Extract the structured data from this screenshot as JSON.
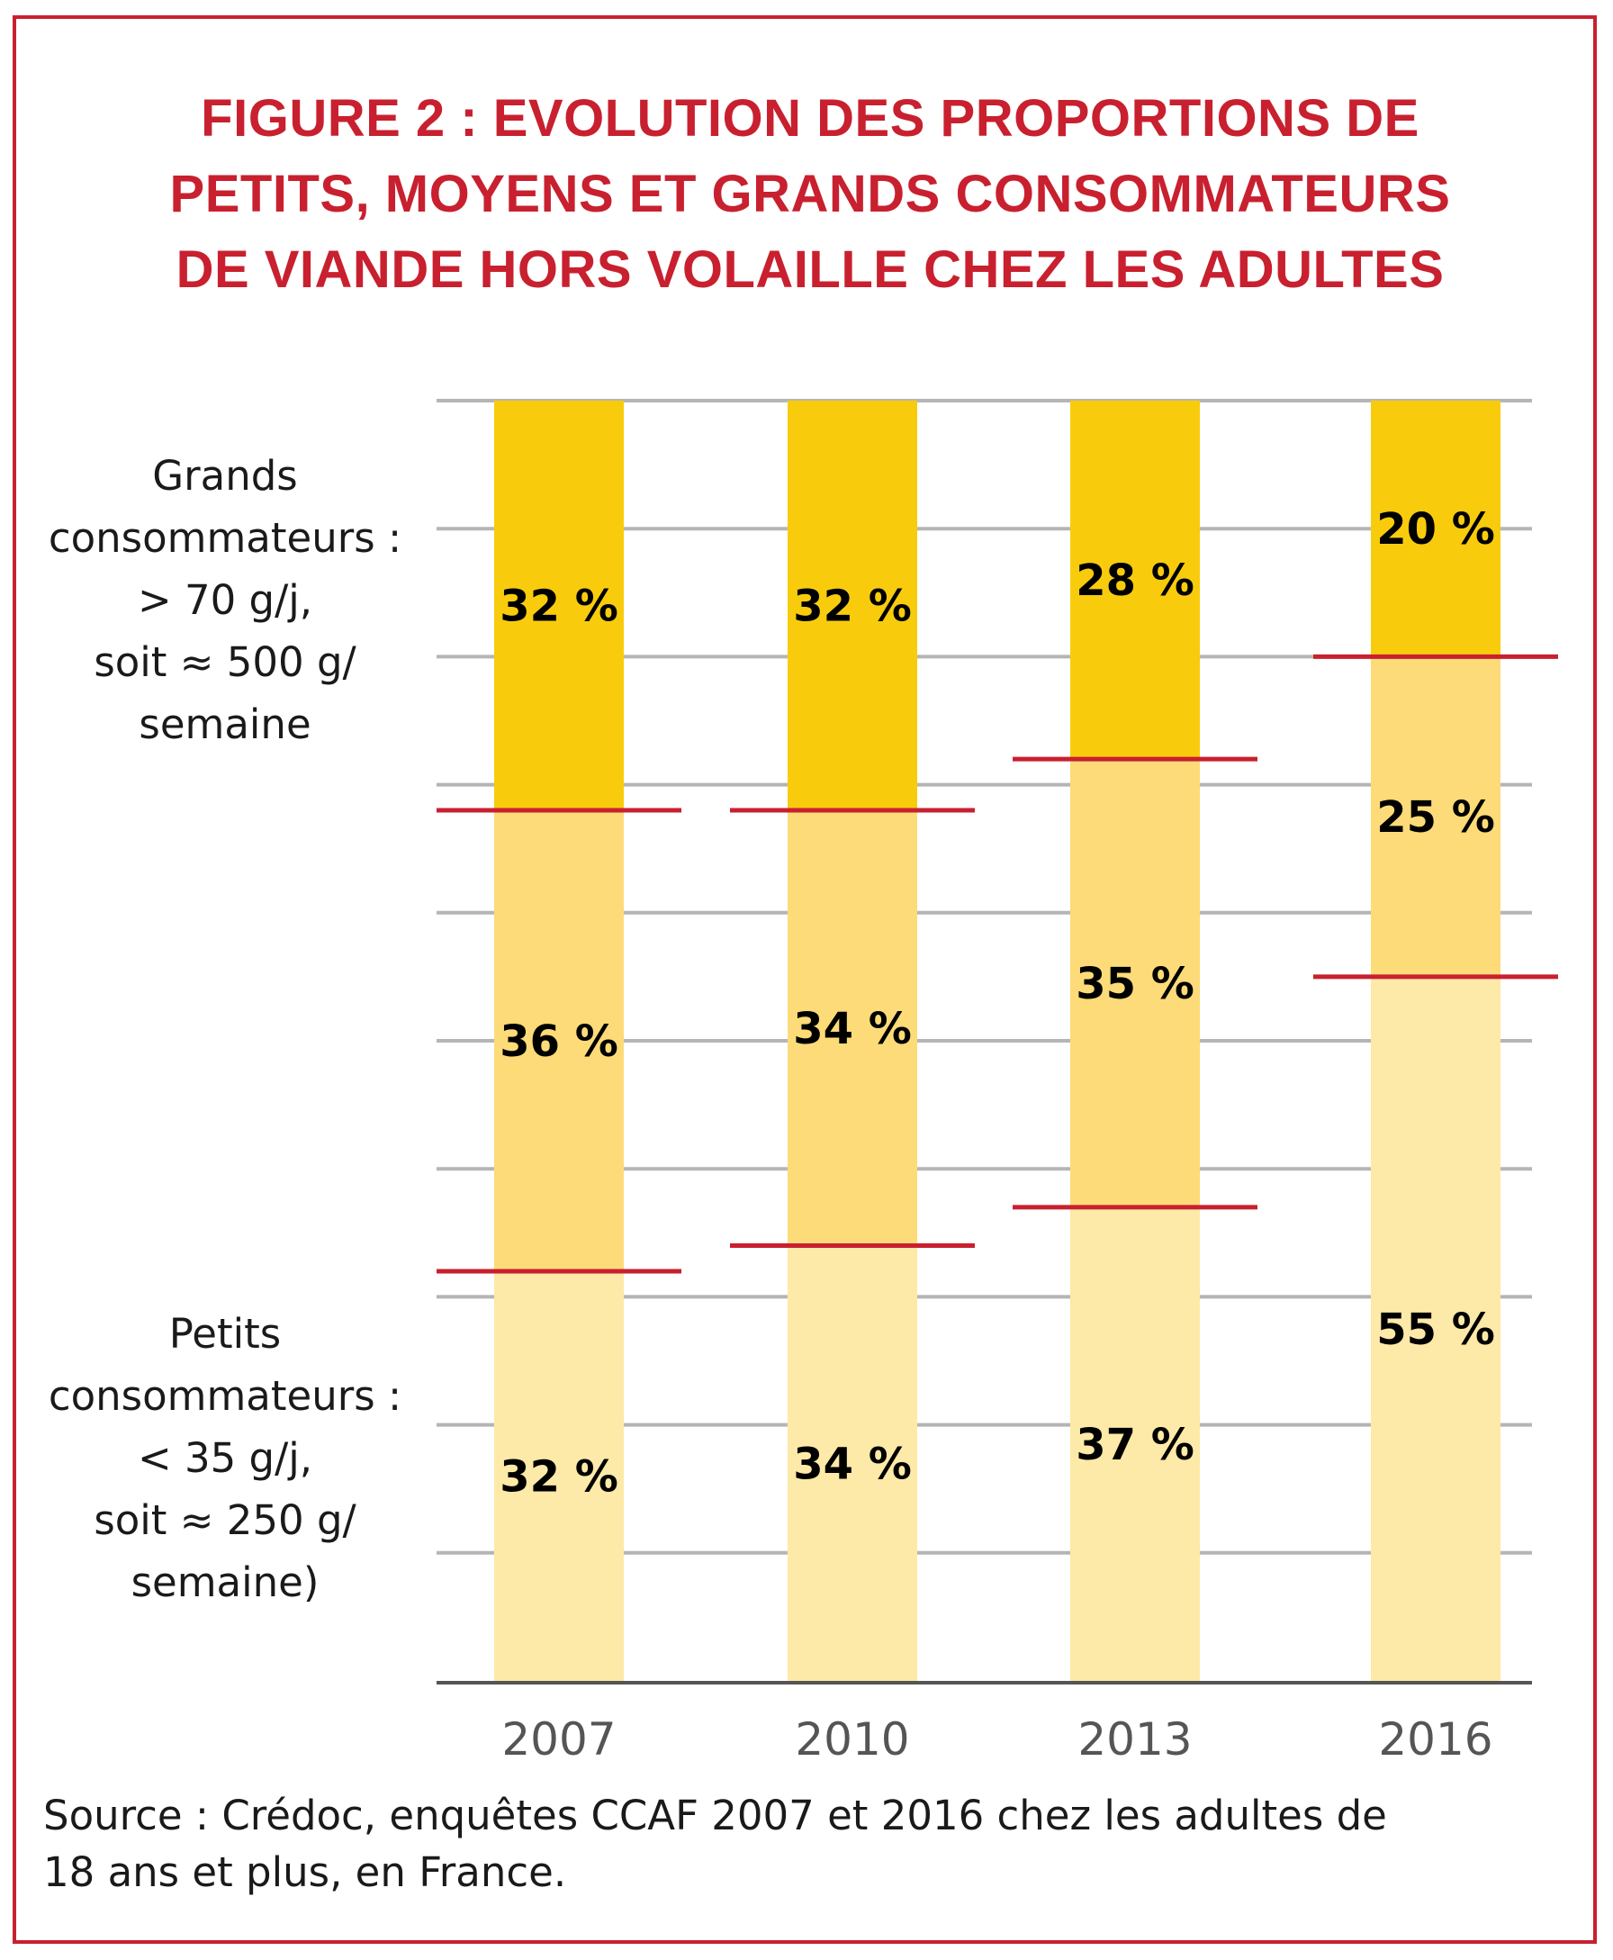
{
  "title": {
    "line1": "FIGURE 2 : EVOLUTION DES PROPORTIONS DE",
    "line2": "PETITS, MOYENS ET GRANDS CONSOMMATEURS",
    "line3": "DE VIANDE HORS VOLAILLE CHEZ LES ADULTES"
  },
  "labels": {
    "top": [
      "Grands",
      "consommateurs :",
      "> 70 g/j,",
      "soit ≈ 500 g/",
      "semaine"
    ],
    "bottom": [
      "Petits",
      "consommateurs :",
      "< 35 g/j,",
      "soit ≈ 250 g/",
      "semaine)"
    ]
  },
  "source": {
    "line1": "Source : Crédoc, enquêtes CCAF 2007 et 2016 chez les adultes de",
    "line2": "18 ans et plus, en France."
  },
  "colors": {
    "frame": "#c8202f",
    "grands": "#f8cc0c",
    "moyens": "#fcdb78",
    "petits": "#fde9a8",
    "separator": "#c8202f",
    "grid": "#b5b5b5",
    "axis": "#555555"
  },
  "chart_data": {
    "type": "bar",
    "stacked": true,
    "normalized": true,
    "categories": [
      "2007",
      "2010",
      "2013",
      "2016"
    ],
    "series": [
      {
        "values": [
          32,
          34,
          37,
          55
        ],
        "labels": [
          "32 %",
          "34 %",
          "37 %",
          "55 %"
        ]
      },
      {
        "values": [
          36,
          34,
          35,
          25
        ],
        "labels": [
          "36 %",
          "34 %",
          "35 %",
          "25 %"
        ]
      },
      {
        "values": [
          32,
          32,
          28,
          20
        ],
        "labels": [
          "32 %",
          "32 %",
          "28 %",
          "20 %"
        ]
      }
    ],
    "ylim": [
      0,
      100
    ],
    "grid": true,
    "title": "",
    "xlabel": "",
    "ylabel": ""
  }
}
